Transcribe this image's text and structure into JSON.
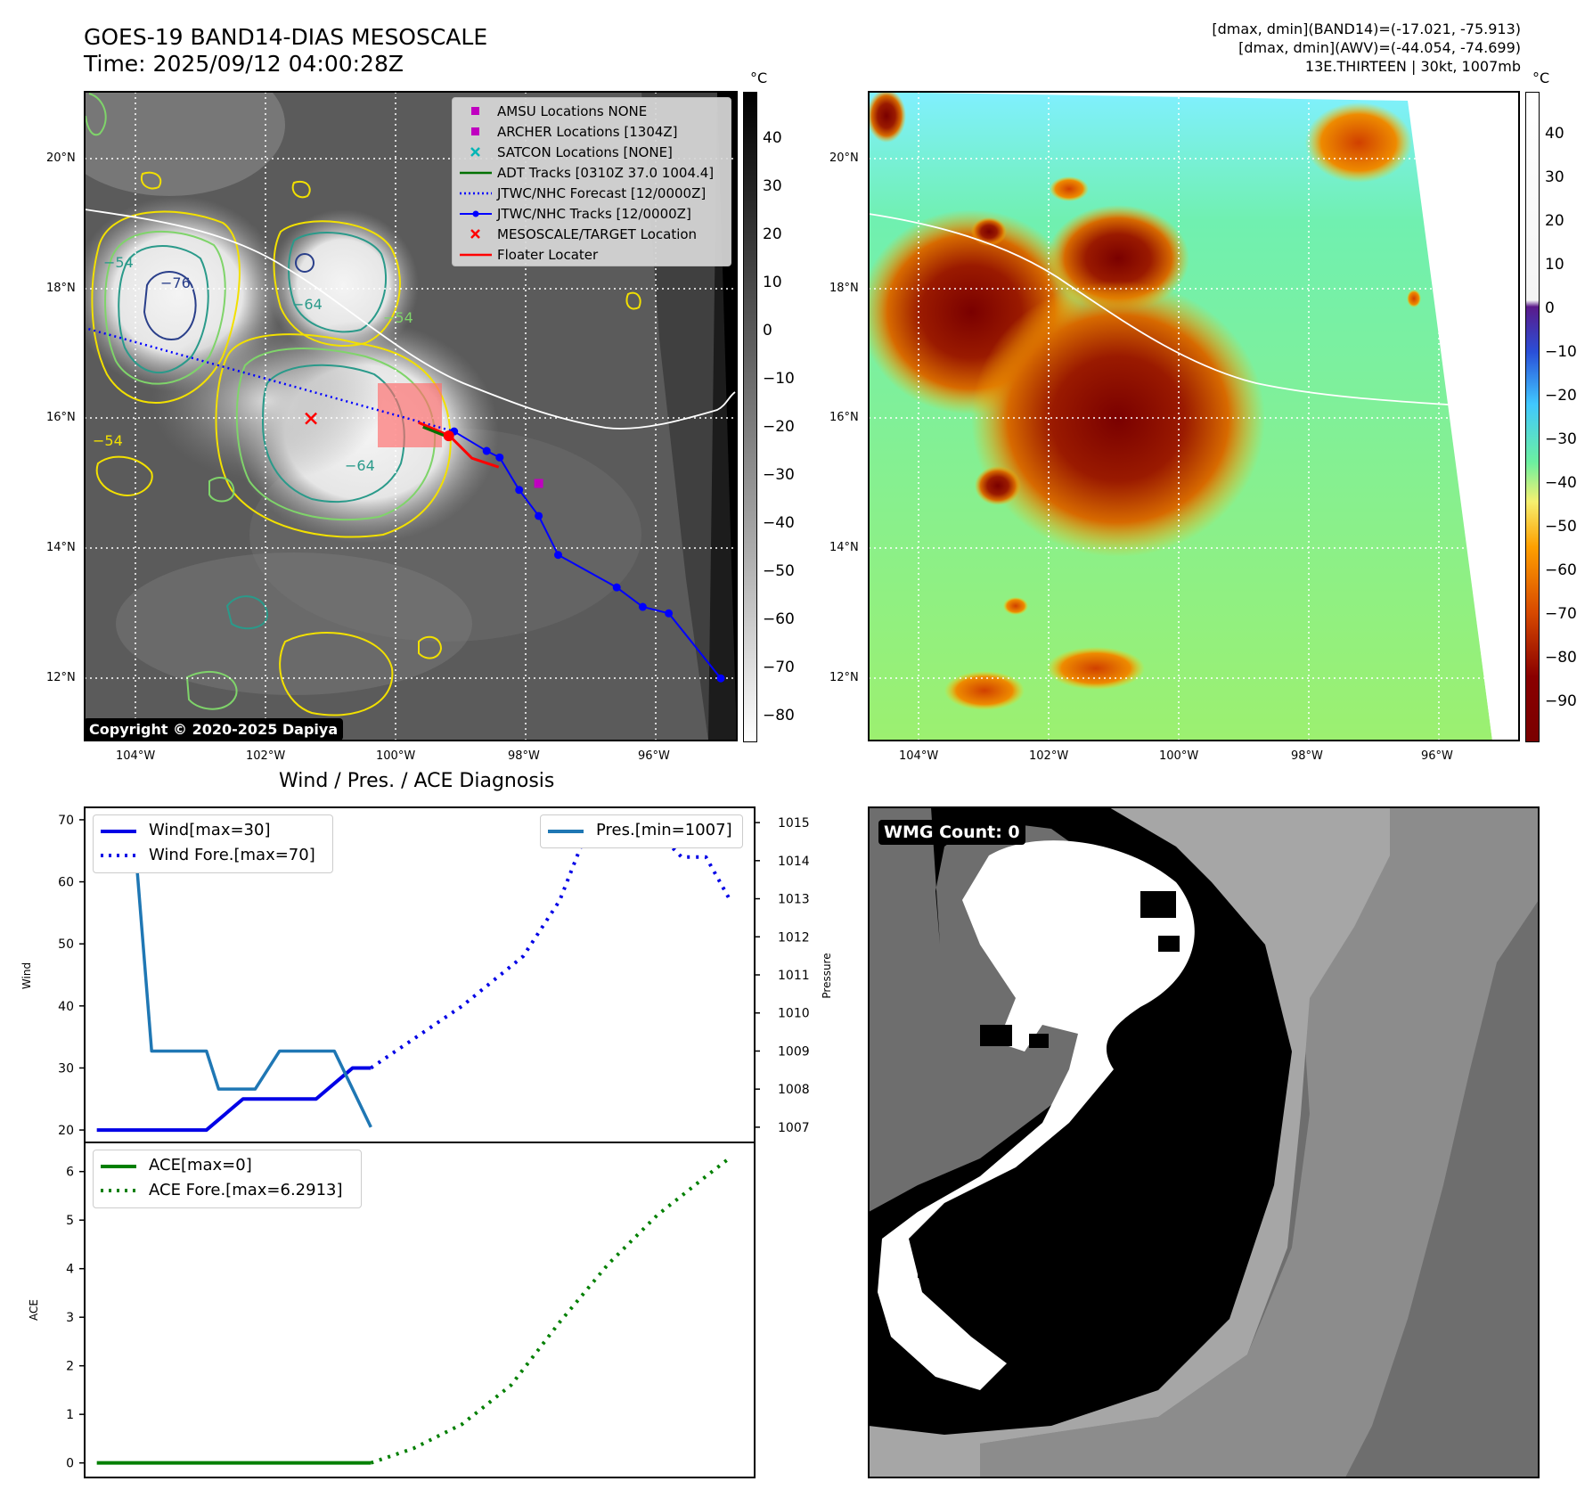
{
  "header": {
    "title_line1": "GOES-19 BAND14-DIAS MESOSCALE",
    "title_line2": "Time: 2025/09/12 04:00:28Z",
    "info_line1": "[dmax, dmin](BAND14)=(-17.021, -75.913)",
    "info_line2": "[dmax, dmin](AWV)=(-44.054, -74.699)",
    "info_line3": "13E.THIRTEEN | 30kt, 1007mb"
  },
  "map_ir": {
    "lat_labels": [
      "20°N",
      "18°N",
      "16°N",
      "14°N",
      "12°N"
    ],
    "lon_labels": [
      "104°W",
      "102°W",
      "100°W",
      "98°W",
      "96°W"
    ],
    "colorbar_unit": "°C",
    "colorbar_ticks": [
      "40",
      "30",
      "20",
      "10",
      "0",
      "−10",
      "−20",
      "−30",
      "−40",
      "−50",
      "−60",
      "−70",
      "−80"
    ],
    "copyright": "Copyright © 2020-2025 Dapiya",
    "contour_labels": [
      "−76",
      "−54",
      "−64",
      "−54",
      "−64",
      "−54"
    ],
    "legend": [
      {
        "label": "AMSU Locations NONE",
        "color": "#c000c0",
        "marker": "square"
      },
      {
        "label": "ARCHER Locations [1304Z]",
        "color": "#c000c0",
        "marker": "square"
      },
      {
        "label": "SATCON Locations [NONE]",
        "color": "#00b5b5",
        "marker": "x"
      },
      {
        "label": "ADT Tracks [0310Z 37.0 1004.4]",
        "color": "#007000",
        "marker": "line"
      },
      {
        "label": "JTWC/NHC Forecast [12/0000Z]",
        "color": "#0000ff",
        "marker": "dotted"
      },
      {
        "label": "JTWC/NHC Tracks [12/0000Z]",
        "color": "#0000ff",
        "marker": "line-dot"
      },
      {
        "label": "MESOSCALE/TARGET Location",
        "color": "#ff0000",
        "marker": "x"
      },
      {
        "label": "Floater Locater",
        "color": "#ff0000",
        "marker": "line"
      }
    ],
    "track_points": [
      [
        -99.1,
        15.8
      ],
      [
        -98.6,
        15.5
      ],
      [
        -98.4,
        15.4
      ],
      [
        -98.1,
        14.9
      ],
      [
        -97.8,
        14.5
      ],
      [
        -97.5,
        13.9
      ],
      [
        -96.6,
        13.4
      ],
      [
        -96.2,
        13.1
      ],
      [
        -95.8,
        13.0
      ],
      [
        -95.0,
        12.0
      ]
    ],
    "forecast_track": [
      [
        -104.8,
        17.4
      ],
      [
        -99.1,
        15.8
      ]
    ],
    "archer_location": [
      -97.8,
      15.0
    ],
    "target_location": [
      -101.3,
      16.0
    ]
  },
  "map_awv": {
    "colorbar_unit": "°C",
    "colorbar_ticks": [
      "40",
      "30",
      "20",
      "10",
      "0",
      "−10",
      "−20",
      "−30",
      "−40",
      "−50",
      "−60",
      "−70",
      "−80",
      "−90"
    ]
  },
  "chart_data": [
    {
      "type": "line",
      "title": "Wind / Pres. / ACE Diagnosis",
      "ylabel": "Wind",
      "ylabel_right": "Pressure",
      "ylim": [
        18,
        72
      ],
      "ylim_right": [
        1006.6,
        1015.4
      ],
      "yticks": [
        20,
        30,
        40,
        50,
        60,
        70
      ],
      "yticks_right": [
        1007,
        1008,
        1009,
        1010,
        1011,
        1012,
        1013,
        1014,
        1015
      ],
      "xlim": [
        -1,
        54
      ],
      "series": [
        {
          "name": "Wind[max=30]",
          "style": "solid",
          "color": "#0000e6",
          "axis": "left",
          "x": [
            0,
            3,
            6,
            9,
            12,
            15,
            18,
            21,
            22.5
          ],
          "values": [
            20,
            20,
            20,
            20,
            25,
            25,
            25,
            30,
            30
          ]
        },
        {
          "name": "Wind Fore.[max=70]",
          "style": "dotted",
          "color": "#0000e6",
          "axis": "left",
          "x": [
            22.5,
            30,
            35,
            38,
            40,
            43,
            45,
            48,
            50,
            52
          ],
          "values": [
            30,
            40,
            48,
            57,
            67,
            70,
            70,
            64,
            64,
            57
          ]
        },
        {
          "name": "Pres.[min=1007]",
          "style": "solid",
          "color": "#1f77b4",
          "axis": "right",
          "x": [
            0,
            3,
            4.5,
            6,
            9,
            10,
            13,
            15,
            18,
            19.5,
            21,
            22.5
          ],
          "values": [
            1015,
            1015,
            1009,
            1009,
            1009,
            1008,
            1008,
            1009,
            1009,
            1009,
            1008,
            1007
          ]
        }
      ]
    },
    {
      "type": "line",
      "ylabel": "ACE",
      "ylim": [
        -0.3,
        6.6
      ],
      "yticks": [
        0,
        1,
        2,
        3,
        4,
        5,
        6
      ],
      "xlim": [
        -1,
        54
      ],
      "series": [
        {
          "name": "ACE[max=0]",
          "style": "solid",
          "color": "#007f00",
          "x": [
            0,
            5,
            10,
            15,
            20,
            22.5
          ],
          "values": [
            0,
            0,
            0,
            0,
            0,
            0
          ]
        },
        {
          "name": "ACE Fore.[max=6.2913]",
          "style": "dotted",
          "color": "#007f00",
          "x": [
            22.5,
            26,
            30,
            34,
            38,
            42,
            46,
            50,
            52
          ],
          "values": [
            0,
            0.3,
            0.8,
            1.6,
            2.9,
            4.1,
            5.1,
            5.9,
            6.29
          ]
        }
      ]
    }
  ],
  "wmg": {
    "badge": "WMG Count: 0"
  }
}
